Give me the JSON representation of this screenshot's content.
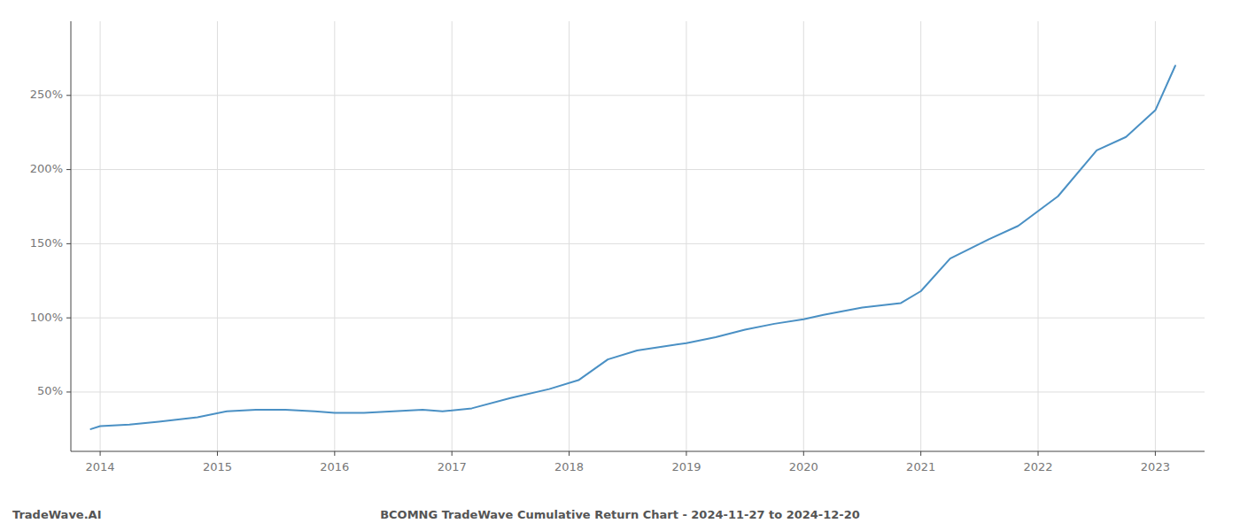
{
  "chart_data": {
    "type": "line",
    "title": "BCOMNG TradeWave Cumulative Return Chart - 2024-11-27 to 2024-12-20",
    "annotations": [
      "TradeWave.AI"
    ],
    "x": [
      2013.92,
      2014.0,
      2014.25,
      2014.5,
      2014.83,
      2015.08,
      2015.33,
      2015.58,
      2015.83,
      2016.0,
      2016.25,
      2016.5,
      2016.75,
      2016.92,
      2017.17,
      2017.5,
      2017.83,
      2018.08,
      2018.33,
      2018.58,
      2018.83,
      2019.0,
      2019.25,
      2019.5,
      2019.75,
      2020.0,
      2020.17,
      2020.5,
      2020.83,
      2021.0,
      2021.25,
      2021.58,
      2021.83,
      2022.17,
      2022.5,
      2022.75,
      2023.0,
      2023.17
    ],
    "values": [
      25,
      27,
      28,
      30,
      33,
      37,
      38,
      38,
      37,
      36,
      36,
      37,
      38,
      37,
      39,
      46,
      52,
      58,
      72,
      78,
      81,
      83,
      87,
      92,
      96,
      99,
      102,
      107,
      110,
      118,
      140,
      153,
      162,
      182,
      213,
      222,
      240,
      270
    ],
    "color": "#4a90c4",
    "xlim": [
      2013.75,
      2023.42
    ],
    "ylim": [
      10,
      300
    ],
    "xticks": [
      2014,
      2015,
      2016,
      2017,
      2018,
      2019,
      2020,
      2021,
      2022,
      2023
    ],
    "yticks": [
      {
        "value": 50,
        "label": "50%"
      },
      {
        "value": 100,
        "label": "100%"
      },
      {
        "value": 150,
        "label": "150%"
      },
      {
        "value": 200,
        "label": "200%"
      },
      {
        "value": 250,
        "label": "250%"
      }
    ],
    "grid": true
  }
}
